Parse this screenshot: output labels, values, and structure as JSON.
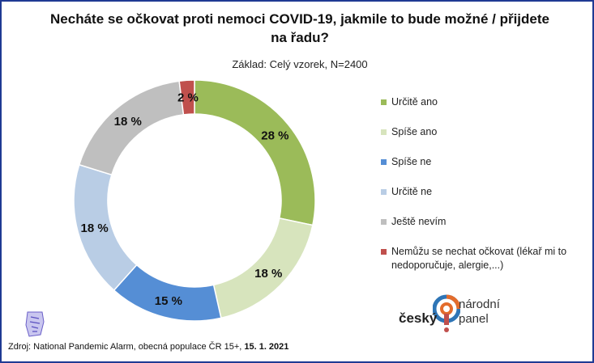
{
  "chart_data": {
    "type": "pie",
    "title": "Necháte se očkovat proti nemoci COVID-19, jakmile to bude možné / přijdete na řadu?",
    "subtitle": "Základ: Celý vzorek, N=2400",
    "categories": [
      "Určitě ano",
      "Spíše ano",
      "Spíše ne",
      "Určitě ne",
      "Ještě nevím",
      "Nemůžu se nechat očkovat (lékař mi to nedoporučuje, alergie,...)"
    ],
    "values": [
      28,
      18,
      15,
      18,
      18,
      2
    ],
    "value_labels": [
      "28 %",
      "18 %",
      "15 %",
      "18 %",
      "18 %",
      "2 %"
    ],
    "colors": [
      "#9bbb59",
      "#d7e4bd",
      "#558ed5",
      "#b9cde5",
      "#bfbfbf",
      "#c0504d"
    ],
    "donut": true,
    "legend_position": "right"
  },
  "source": {
    "prefix": "Zdroj: National Pandemic Alarm, obecná populace ČR 15+, ",
    "date": "15. 1. 2021"
  },
  "logo": {
    "word1": "český",
    "word2": "národní",
    "word3": "panel"
  }
}
